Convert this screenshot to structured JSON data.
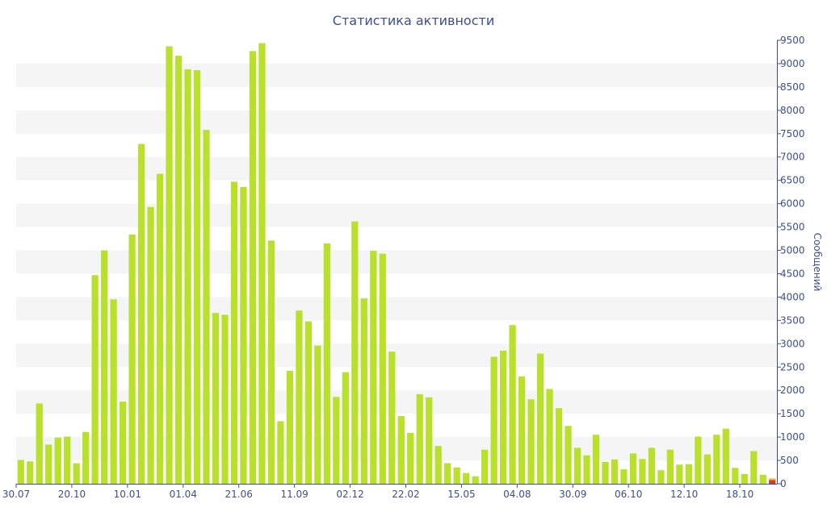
{
  "chart_data": {
    "type": "bar",
    "title": "Статистика активности",
    "ylabel": "Сообщений",
    "ylim": [
      0,
      9500
    ],
    "yticks": [
      0,
      500,
      1000,
      1500,
      2000,
      2500,
      3000,
      3500,
      4000,
      4500,
      5000,
      5500,
      6000,
      6500,
      7000,
      7500,
      8000,
      8500,
      9000,
      9500
    ],
    "grid": "horizontal bands",
    "colors": {
      "bar": "#b9e12c",
      "band": "#f5f5f5",
      "axis": "#3c4e8e",
      "last_bar": "#d23c28"
    },
    "x_tick_labels": [
      {
        "index": 0,
        "label": "30.07"
      },
      {
        "index": 6,
        "label": "20.10"
      },
      {
        "index": 12,
        "label": "10.01"
      },
      {
        "index": 18,
        "label": "01.04"
      },
      {
        "index": 24,
        "label": "21.06"
      },
      {
        "index": 30,
        "label": "11.09"
      },
      {
        "index": 36,
        "label": "02.12"
      },
      {
        "index": 42,
        "label": "22.02"
      },
      {
        "index": 48,
        "label": "15.05"
      },
      {
        "index": 54,
        "label": "04.08"
      },
      {
        "index": 60,
        "label": "30.09"
      },
      {
        "index": 66,
        "label": "06.10"
      },
      {
        "index": 72,
        "label": "12.10"
      },
      {
        "index": 78,
        "label": "18.10"
      }
    ],
    "values": [
      510,
      480,
      1720,
      840,
      990,
      1010,
      440,
      1110,
      4470,
      5000,
      3950,
      1760,
      5340,
      7280,
      5930,
      6640,
      9370,
      9170,
      8880,
      8860,
      7580,
      3660,
      3620,
      6470,
      6360,
      9270,
      9440,
      5210,
      1340,
      2420,
      3710,
      3480,
      2960,
      5150,
      1860,
      2390,
      5620,
      3970,
      4990,
      4930,
      2830,
      1450,
      1090,
      1920,
      1850,
      810,
      440,
      350,
      230,
      160,
      730,
      2720,
      2850,
      3400,
      2300,
      1810,
      2790,
      2030,
      1620,
      1240,
      770,
      610,
      1050,
      470,
      520,
      310,
      650,
      530,
      770,
      290,
      730,
      410,
      420,
      1010,
      630,
      1050,
      1180,
      340,
      210,
      700,
      190,
      80
    ]
  }
}
